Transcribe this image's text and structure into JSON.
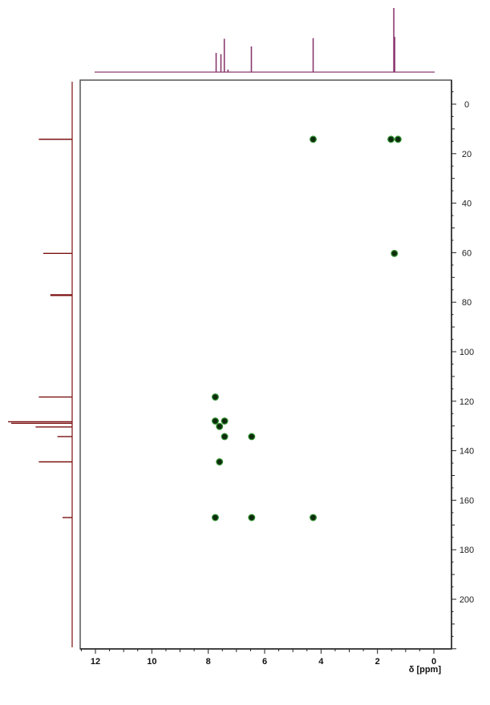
{
  "chart_data": {
    "type": "scatter",
    "title": "",
    "xlabel": "δ [ppm]",
    "ylabel": "",
    "x_axis": {
      "min": 0,
      "max": 12.6,
      "reversed": true,
      "ticks": [
        12,
        10,
        8,
        6,
        4,
        2,
        0
      ],
      "labels": [
        "12",
        "10",
        "8",
        "6",
        "4",
        "2",
        "0"
      ]
    },
    "y_axis": {
      "min": -10,
      "max": 220,
      "ticks": [
        0,
        20,
        40,
        60,
        80,
        100,
        120,
        140,
        160,
        180,
        200
      ],
      "labels": [
        "0",
        "20",
        "40",
        "60",
        "80",
        "100",
        "120",
        "140",
        "160",
        "180",
        "200"
      ]
    },
    "grid": false,
    "series": [
      {
        "points": [
          {
            "x": 4.28,
            "y": 14.2
          },
          {
            "x": 1.52,
            "y": 14.2
          },
          {
            "x": 1.27,
            "y": 14.2
          },
          {
            "x": 1.4,
            "y": 60.3
          },
          {
            "x": 7.75,
            "y": 118.3
          },
          {
            "x": 7.75,
            "y": 128.0
          },
          {
            "x": 7.42,
            "y": 128.0
          },
          {
            "x": 7.6,
            "y": 130.2
          },
          {
            "x": 7.42,
            "y": 134.3
          },
          {
            "x": 6.46,
            "y": 134.3
          },
          {
            "x": 7.6,
            "y": 144.5
          },
          {
            "x": 7.75,
            "y": 167.0
          },
          {
            "x": 6.46,
            "y": 167.0
          },
          {
            "x": 4.28,
            "y": 167.0
          }
        ]
      }
    ],
    "top_spectrum_peaks": [
      {
        "x": 7.72,
        "height": 0.3
      },
      {
        "x": 7.55,
        "height": 0.28
      },
      {
        "x": 7.43,
        "height": 0.52
      },
      {
        "x": 7.3,
        "height": 0.04
      },
      {
        "x": 6.47,
        "height": 0.4
      },
      {
        "x": 4.28,
        "height": 0.53
      },
      {
        "x": 1.42,
        "height": 1.0
      },
      {
        "x": 1.39,
        "height": 0.55
      }
    ],
    "side_spectrum_peaks": [
      {
        "y": 14.2,
        "height": 0.52
      },
      {
        "y": 60.3,
        "height": 0.45
      },
      {
        "y": 77.0,
        "height": 0.34
      },
      {
        "y": 77.3,
        "height": 0.34
      },
      {
        "y": 118.3,
        "height": 0.52
      },
      {
        "y": 128.3,
        "height": 1.0
      },
      {
        "y": 128.9,
        "height": 0.95
      },
      {
        "y": 130.4,
        "height": 0.57
      },
      {
        "y": 134.3,
        "height": 0.23
      },
      {
        "y": 144.5,
        "height": 0.52
      },
      {
        "y": 167.0,
        "height": 0.15
      }
    ],
    "colors": {
      "top_spectrum": "#8a3a6e",
      "side_spectrum": "#7a1010",
      "marker_fill": "#0e2a0e",
      "marker_stroke": "#2e8b2e",
      "frame": "#555555"
    }
  }
}
